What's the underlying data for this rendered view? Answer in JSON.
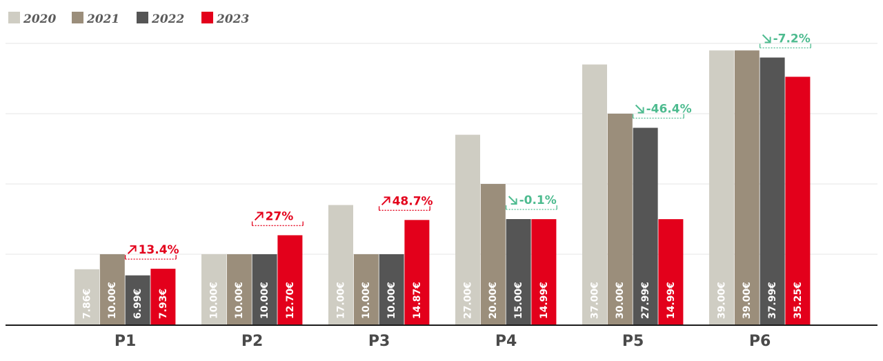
{
  "chart_data": {
    "type": "bar",
    "title": "",
    "xlabel": "",
    "ylabel": "",
    "ylim": [
      0,
      40
    ],
    "grid": true,
    "legend_position": "top-left",
    "value_suffix": "€",
    "categories": [
      "P1",
      "P2",
      "P3",
      "P4",
      "P5",
      "P6"
    ],
    "series": [
      {
        "name": "2020",
        "color": "#cfcdc3",
        "values": [
          7.86,
          10.0,
          17.0,
          27.0,
          37.0,
          39.0
        ]
      },
      {
        "name": "2021",
        "color": "#9b8e7b",
        "values": [
          10.0,
          10.0,
          10.0,
          20.0,
          30.0,
          39.0
        ]
      },
      {
        "name": "2022",
        "color": "#555555",
        "values": [
          6.99,
          10.0,
          10.0,
          15.0,
          27.99,
          37.99
        ]
      },
      {
        "name": "2023",
        "color": "#e3001b",
        "values": [
          7.93,
          12.7,
          14.87,
          14.99,
          14.99,
          35.25
        ]
      }
    ],
    "annotations": [
      {
        "category": "P1",
        "text": "13.4%",
        "direction": "up",
        "color": "#e3001b"
      },
      {
        "category": "P2",
        "text": "27%",
        "direction": "up",
        "color": "#e3001b"
      },
      {
        "category": "P3",
        "text": "48.7%",
        "direction": "up",
        "color": "#e3001b"
      },
      {
        "category": "P4",
        "text": "-0.1%",
        "direction": "down",
        "color": "#4dbb8f"
      },
      {
        "category": "P5",
        "text": "-46.4%",
        "direction": "down",
        "color": "#4dbb8f"
      },
      {
        "category": "P6",
        "text": "-7.2%",
        "direction": "down",
        "color": "#4dbb8f"
      }
    ]
  }
}
